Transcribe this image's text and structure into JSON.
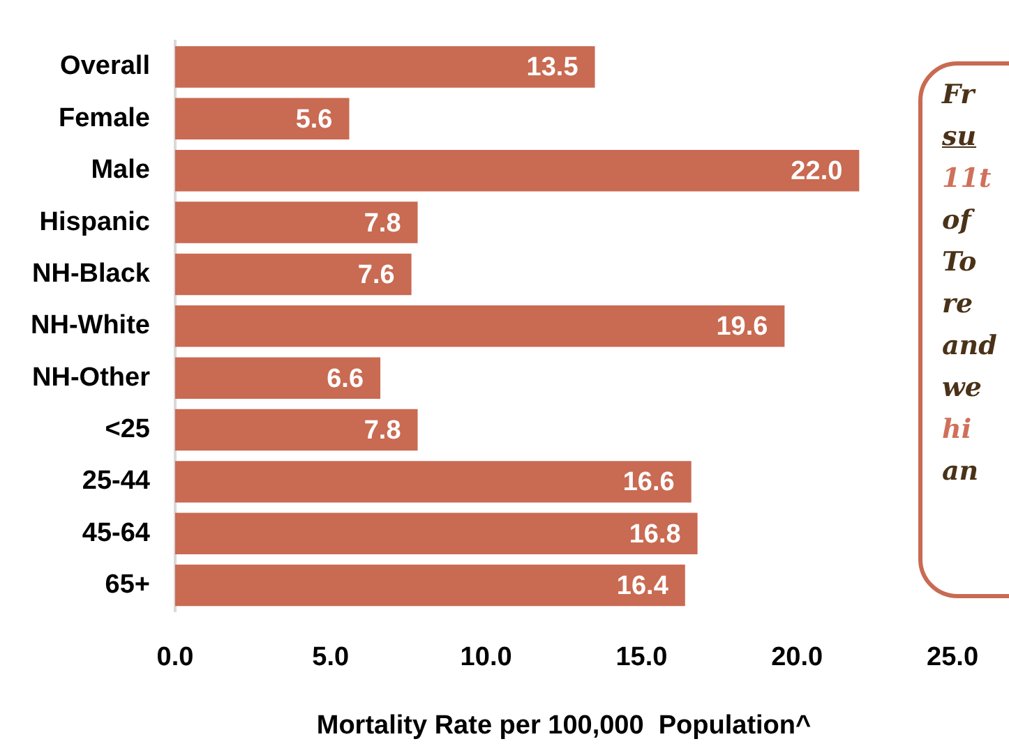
{
  "chart_data": {
    "type": "bar",
    "orientation": "horizontal",
    "xlabel": "Mortality Rate per 100,000  Population^",
    "categories": [
      "Overall",
      "Female",
      "Male",
      "Hispanic",
      "NH-Black",
      "NH-White",
      "NH-Other",
      "<25",
      "25-44",
      "45-64",
      "65+"
    ],
    "values": [
      13.5,
      5.6,
      22.0,
      7.8,
      7.6,
      19.6,
      6.6,
      7.8,
      16.6,
      16.8,
      16.4
    ],
    "color": "#c96a52",
    "xlim": [
      0,
      25
    ],
    "xticks": [
      {
        "value": 0,
        "label": "0.0"
      },
      {
        "value": 5,
        "label": "5.0"
      },
      {
        "value": 10,
        "label": "10.0"
      },
      {
        "value": 15,
        "label": "15.0"
      },
      {
        "value": 20,
        "label": "20.0"
      },
      {
        "value": 25,
        "label": "25.0"
      }
    ],
    "value_labels": [
      "13.5",
      "5.6",
      "22.0",
      "7.8",
      "7.6",
      "19.6",
      "6.6",
      "7.8",
      "16.6",
      "16.8",
      "16.4"
    ],
    "grid": false,
    "legend": false,
    "annotations": [
      "Fr",
      "su",
      "11t",
      "of",
      "To",
      "re",
      "and",
      "we",
      "hi",
      "an"
    ]
  }
}
